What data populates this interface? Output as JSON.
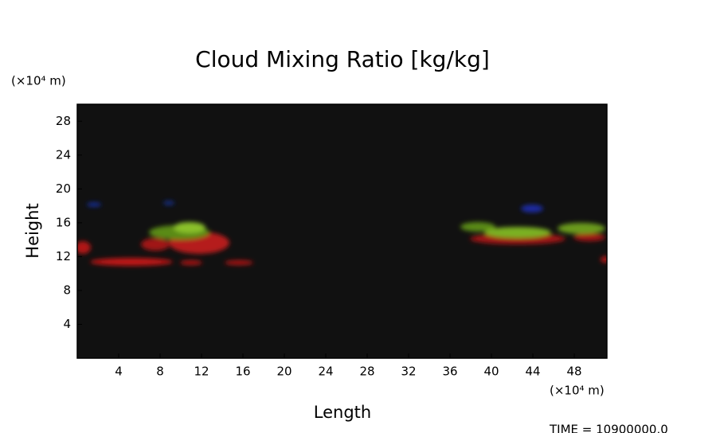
{
  "chart_data": {
    "type": "field",
    "title": "Cloud Mixing Ratio [kg/kg]",
    "x_label": "Length",
    "y_label": "Height",
    "x_unit_label": "(×10⁴ m)",
    "y_unit_label": "(×10⁴ m)",
    "annotation": "TIME =  10900000.0",
    "xlim": [
      0,
      51.15
    ],
    "ylim": [
      0,
      30
    ],
    "xticks": [
      4,
      8,
      12,
      16,
      20,
      24,
      28,
      32,
      36,
      40,
      44,
      48
    ],
    "yticks": [
      4,
      8,
      12,
      16,
      20,
      24,
      28
    ],
    "background": "#111111"
  }
}
